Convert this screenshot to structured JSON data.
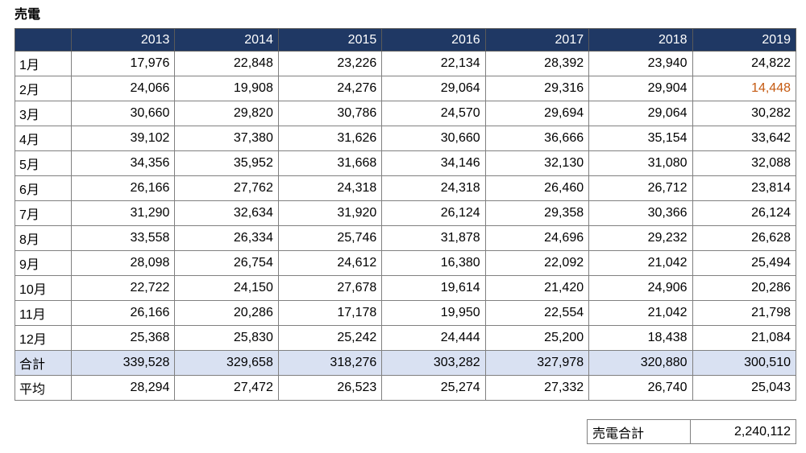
{
  "title": "売電",
  "colors": {
    "header_bg": "#1F3864",
    "header_text": "#FFFFFF",
    "total_row_bg": "#D9E1F2",
    "highlight_text": "#C55A11",
    "grid_border": "#808080",
    "outer_border": "#595959"
  },
  "table": {
    "corner_label": "",
    "years": [
      "2013",
      "2014",
      "2015",
      "2016",
      "2017",
      "2018",
      "2019"
    ],
    "rows": [
      {
        "label": "1月",
        "type": "data",
        "values": [
          "17,976",
          "22,848",
          "23,226",
          "22,134",
          "28,392",
          "23,940",
          "24,822"
        ]
      },
      {
        "label": "2月",
        "type": "data",
        "values": [
          "24,066",
          "19,908",
          "24,276",
          "29,064",
          "29,316",
          "29,904",
          "14,448"
        ]
      },
      {
        "label": "3月",
        "type": "data",
        "values": [
          "30,660",
          "29,820",
          "30,786",
          "24,570",
          "29,694",
          "29,064",
          "30,282"
        ]
      },
      {
        "label": "4月",
        "type": "data",
        "values": [
          "39,102",
          "37,380",
          "31,626",
          "30,660",
          "36,666",
          "35,154",
          "33,642"
        ]
      },
      {
        "label": "5月",
        "type": "data",
        "values": [
          "34,356",
          "35,952",
          "31,668",
          "34,146",
          "32,130",
          "31,080",
          "32,088"
        ]
      },
      {
        "label": "6月",
        "type": "data",
        "values": [
          "26,166",
          "27,762",
          "24,318",
          "24,318",
          "26,460",
          "26,712",
          "23,814"
        ]
      },
      {
        "label": "7月",
        "type": "data",
        "values": [
          "31,290",
          "32,634",
          "31,920",
          "26,124",
          "29,358",
          "30,366",
          "26,124"
        ]
      },
      {
        "label": "8月",
        "type": "data",
        "values": [
          "33,558",
          "26,334",
          "25,746",
          "31,878",
          "24,696",
          "29,232",
          "26,628"
        ]
      },
      {
        "label": "9月",
        "type": "data",
        "values": [
          "28,098",
          "26,754",
          "24,612",
          "16,380",
          "22,092",
          "21,042",
          "25,494"
        ]
      },
      {
        "label": "10月",
        "type": "data",
        "values": [
          "22,722",
          "24,150",
          "27,678",
          "19,614",
          "21,420",
          "24,906",
          "20,286"
        ]
      },
      {
        "label": "11月",
        "type": "data",
        "values": [
          "26,166",
          "20,286",
          "17,178",
          "19,950",
          "22,554",
          "21,042",
          "21,798"
        ]
      },
      {
        "label": "12月",
        "type": "data",
        "values": [
          "25,368",
          "25,830",
          "25,242",
          "24,444",
          "25,200",
          "18,438",
          "21,084"
        ]
      },
      {
        "label": "合計",
        "type": "total",
        "values": [
          "339,528",
          "329,658",
          "318,276",
          "303,282",
          "327,978",
          "320,880",
          "300,510"
        ]
      },
      {
        "label": "平均",
        "type": "average",
        "values": [
          "28,294",
          "27,472",
          "26,523",
          "25,274",
          "27,332",
          "26,740",
          "25,043"
        ]
      }
    ],
    "highlight_cell": {
      "row_index": 1,
      "col_index": 6,
      "color": "#C55A11"
    }
  },
  "summary": {
    "label": "売電合計",
    "value": "2,240,112"
  }
}
